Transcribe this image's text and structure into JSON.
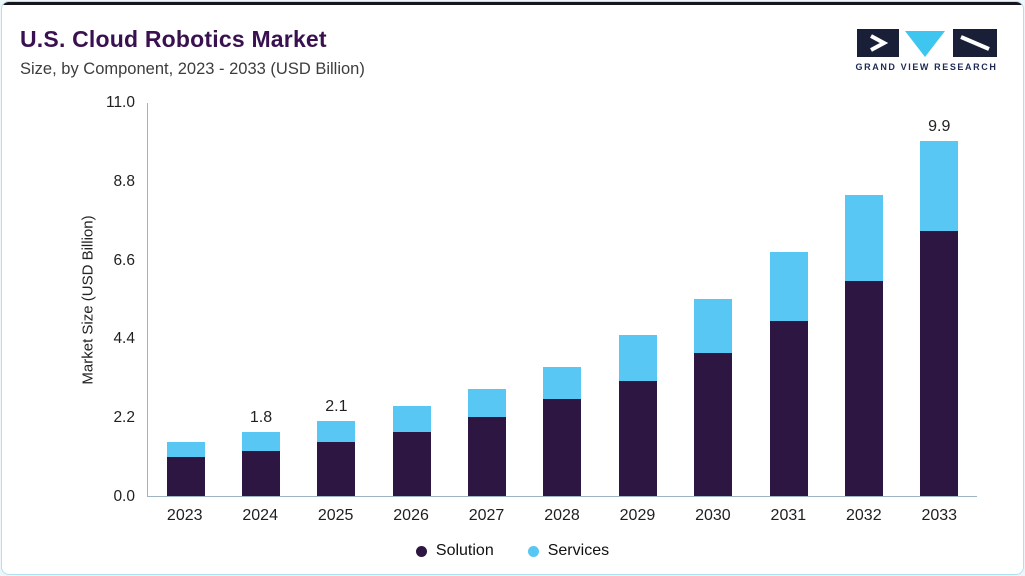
{
  "header": {
    "title": "U.S. Cloud Robotics Market",
    "subtitle": "Size, by Component, 2023 - 2033 (USD Billion)"
  },
  "logo": {
    "text": "GRAND VIEW RESEARCH",
    "dark_color": "#1a1f38",
    "cyan_color": "#3fc6f0"
  },
  "chart_data": {
    "type": "bar",
    "stacked": true,
    "title": "U.S. Cloud Robotics Market",
    "subtitle": "Size, by Component, 2023 - 2033 (USD Billion)",
    "xlabel": "",
    "ylabel": "Market Size (USD Billion)",
    "ylim": [
      0,
      11.0
    ],
    "yticks": [
      0.0,
      2.2,
      4.4,
      6.6,
      8.8,
      11.0
    ],
    "grid": false,
    "legend_position": "bottom",
    "categories": [
      "2023",
      "2024",
      "2025",
      "2026",
      "2027",
      "2028",
      "2029",
      "2030",
      "2031",
      "2032",
      "2033"
    ],
    "series": [
      {
        "name": "Solution",
        "color": "#2e1643",
        "values": [
          1.1,
          1.25,
          1.5,
          1.8,
          2.2,
          2.7,
          3.2,
          4.0,
          4.9,
          6.0,
          7.4
        ]
      },
      {
        "name": "Services",
        "color": "#58c7f3",
        "values": [
          0.4,
          0.55,
          0.6,
          0.7,
          0.8,
          0.9,
          1.3,
          1.5,
          1.9,
          2.4,
          2.5
        ]
      }
    ],
    "totals": [
      1.5,
      1.8,
      2.1,
      2.5,
      3.0,
      3.6,
      4.5,
      5.5,
      6.8,
      8.4,
      9.9
    ],
    "bar_labels": {
      "2024": "1.8",
      "2025": "2.1",
      "2033": "9.9"
    }
  }
}
